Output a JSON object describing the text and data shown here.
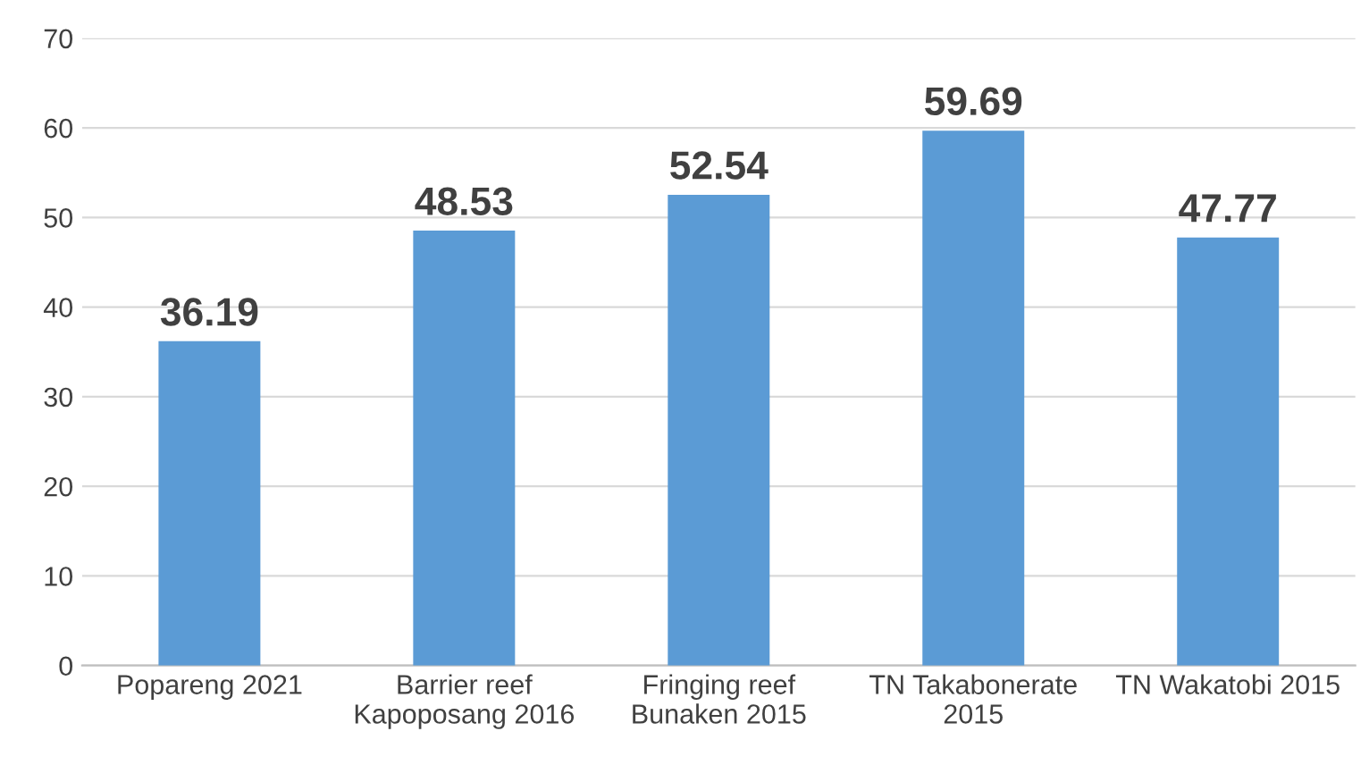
{
  "chart_data": {
    "type": "bar",
    "categories": [
      "Popareng 2021",
      "Barrier reef Kapoposang 2016",
      "Fringing reef Bunaken 2015",
      "TN Takabonerate 2015",
      "TN Wakatobi 2015"
    ],
    "values": [
      36.19,
      48.53,
      52.54,
      59.69,
      47.77
    ],
    "color": "#5b9bd5",
    "ylim": [
      0,
      70
    ],
    "yticks": [
      0,
      10,
      20,
      30,
      40,
      50,
      60,
      70
    ],
    "grid": "y",
    "data_labels": true
  }
}
